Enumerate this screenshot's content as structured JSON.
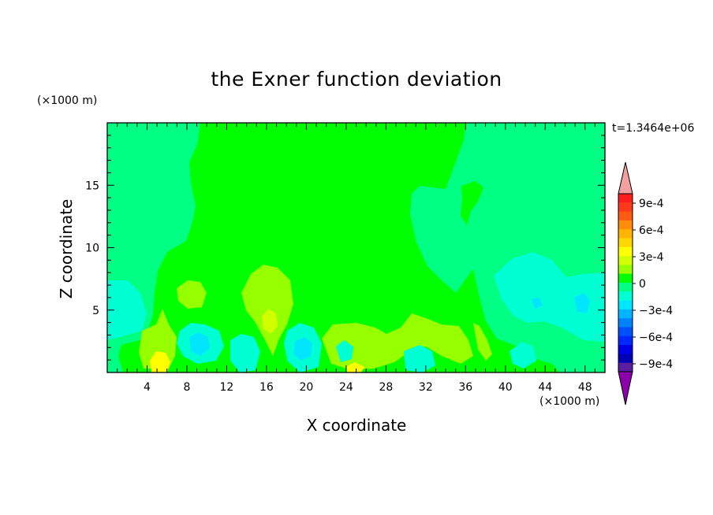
{
  "chart_data": {
    "type": "heatmap",
    "title": "the Exner function deviation",
    "xlabel": "X coordinate",
    "ylabel": "Z coordinate",
    "x_unit": "(×1000 m)",
    "y_unit": "(×1000 m)",
    "time_label": "t=1.3464e+06",
    "xlim": [
      0,
      50
    ],
    "ylim": [
      0,
      20
    ],
    "x_ticks": [
      4,
      8,
      12,
      16,
      20,
      24,
      28,
      32,
      36,
      40,
      44,
      48
    ],
    "y_ticks": [
      5,
      10,
      15
    ],
    "colorbar": {
      "levels": [
        -0.0009,
        -0.0006,
        -0.0003,
        0,
        0.0003,
        0.0006,
        0.0009
      ],
      "tick_labels": [
        "9e-4",
        "6e-4",
        "3e-4",
        "0",
        "−3e-4",
        "−6e-4",
        "−9e-4"
      ],
      "extend": "both",
      "colors_top_to_bottom": [
        "#f0a0a0",
        "#ff1e1e",
        "#ff3a1a",
        "#ff5a14",
        "#ff8c0a",
        "#ffb400",
        "#ffd700",
        "#ffff00",
        "#d2ff00",
        "#96ff00",
        "#00ff00",
        "#00ff82",
        "#00ffd2",
        "#00e6ff",
        "#00b4ff",
        "#0082ff",
        "#0050ff",
        "#0028ff",
        "#0000e6",
        "#0000b4",
        "#5a1ea0",
        "#8c00aa"
      ]
    },
    "field_regions": [
      {
        "level": "0 to 3e-4",
        "color": "#00ff00",
        "x": [
          9,
          35
        ],
        "z": [
          7,
          20
        ]
      },
      {
        "level": "-1.5e-4 to 0",
        "color": "#00ff82",
        "x": [
          0,
          9
        ],
        "z": [
          8,
          20
        ]
      },
      {
        "level": "-1.5e-4 to 0",
        "color": "#00ff82",
        "x": [
          35,
          50
        ],
        "z": [
          8,
          20
        ]
      },
      {
        "level": "-3e-4 to -1.5e-4",
        "color": "#00ffd2",
        "x": [
          39,
          50
        ],
        "z": [
          1,
          9
        ]
      },
      {
        "level": "-4.5e-4 to -3e-4",
        "color": "#00e6ff",
        "x": [
          7,
          11
        ],
        "z": [
          1,
          4
        ]
      },
      {
        "level": "1.5e-4 to 3e-4",
        "color": "#96ff00",
        "x": [
          14,
          19
        ],
        "z": [
          3,
          9
        ]
      },
      {
        "level": "3e-4 to 4.5e-4",
        "color": "#d2ff00",
        "x": [
          15,
          17
        ],
        "z": [
          3,
          5
        ]
      },
      {
        "level": "4.5e-4 to 6e-4",
        "color": "#ffff00",
        "x": [
          4,
          6
        ],
        "z": [
          0,
          2
        ]
      }
    ]
  }
}
